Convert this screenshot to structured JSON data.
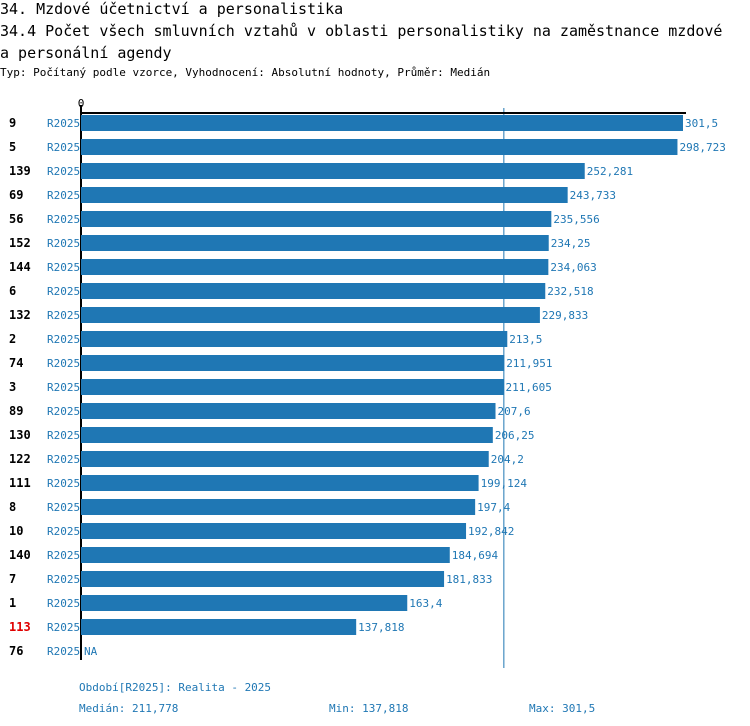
{
  "header": {
    "title": "34. Mzdové účetnictví a personalistika",
    "subtitle": "34.4 Počet všech smluvních vztahů v oblasti personalistiky na zaměstnance mzdové a personální agendy",
    "meta": "Typ: Počítaný podle vzorce, Vyhodnocení: Absolutní hodnoty, Průměr: Medián"
  },
  "colors": {
    "bar": "#1f77b4",
    "label": "#1f77b4",
    "highlight": "#e00000",
    "text": "#000000"
  },
  "chart_data": {
    "type": "bar",
    "orientation": "horizontal",
    "title": "34.4 Počet všech smluvních vztahů v oblasti personalistiky na zaměstnance mzdové a personální agendy",
    "xlim": [
      0,
      301.5
    ],
    "x_tick_labels": [
      "0"
    ],
    "median_line": 211.778,
    "highlighted_id": "113",
    "rows": [
      {
        "id": "9",
        "series": "R2025",
        "value": 301.5,
        "label": "301,5"
      },
      {
        "id": "5",
        "series": "R2025",
        "value": 298.723,
        "label": "298,723"
      },
      {
        "id": "139",
        "series": "R2025",
        "value": 252.281,
        "label": "252,281"
      },
      {
        "id": "69",
        "series": "R2025",
        "value": 243.733,
        "label": "243,733"
      },
      {
        "id": "56",
        "series": "R2025",
        "value": 235.556,
        "label": "235,556"
      },
      {
        "id": "152",
        "series": "R2025",
        "value": 234.25,
        "label": "234,25"
      },
      {
        "id": "144",
        "series": "R2025",
        "value": 234.063,
        "label": "234,063"
      },
      {
        "id": "6",
        "series": "R2025",
        "value": 232.518,
        "label": "232,518"
      },
      {
        "id": "132",
        "series": "R2025",
        "value": 229.833,
        "label": "229,833"
      },
      {
        "id": "2",
        "series": "R2025",
        "value": 213.5,
        "label": "213,5"
      },
      {
        "id": "74",
        "series": "R2025",
        "value": 211.951,
        "label": "211,951"
      },
      {
        "id": "3",
        "series": "R2025",
        "value": 211.605,
        "label": "211,605"
      },
      {
        "id": "89",
        "series": "R2025",
        "value": 207.6,
        "label": "207,6"
      },
      {
        "id": "130",
        "series": "R2025",
        "value": 206.25,
        "label": "206,25"
      },
      {
        "id": "122",
        "series": "R2025",
        "value": 204.2,
        "label": "204,2"
      },
      {
        "id": "111",
        "series": "R2025",
        "value": 199.124,
        "label": "199,124"
      },
      {
        "id": "8",
        "series": "R2025",
        "value": 197.4,
        "label": "197,4"
      },
      {
        "id": "10",
        "series": "R2025",
        "value": 192.842,
        "label": "192,842"
      },
      {
        "id": "140",
        "series": "R2025",
        "value": 184.694,
        "label": "184,694"
      },
      {
        "id": "7",
        "series": "R2025",
        "value": 181.833,
        "label": "181,833"
      },
      {
        "id": "1",
        "series": "R2025",
        "value": 163.4,
        "label": "163,4"
      },
      {
        "id": "113",
        "series": "R2025",
        "value": 137.818,
        "label": "137,818"
      },
      {
        "id": "76",
        "series": "R2025",
        "value": null,
        "label": "NA"
      }
    ]
  },
  "footer": {
    "period": "Období[R2025]: Realita - 2025",
    "median": "Medián: 211,778",
    "min": "Min: 137,818",
    "max": "Max: 301,5"
  }
}
